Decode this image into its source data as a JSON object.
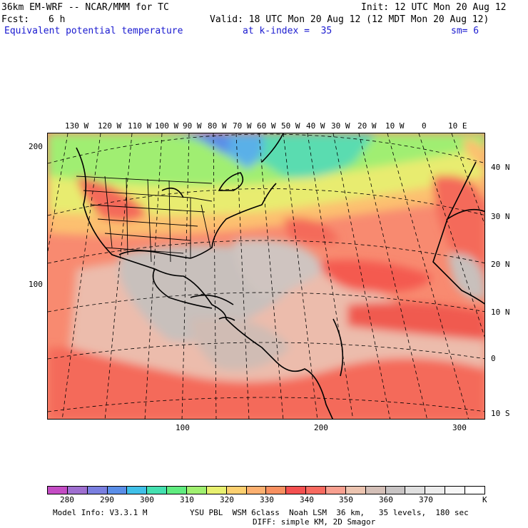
{
  "header": {
    "model_title": "36km EM-WRF -- NCAR/MMM for TC",
    "init": "Init: 12 UTC Mon 20 Aug 12",
    "fcst_label": "Fcst:",
    "fcst_value": "6 h",
    "valid": "Valid: 18 UTC Mon 20 Aug 12 (12 MDT Mon 20 Aug 12)",
    "field_name": "Equivalent potential temperature",
    "level": "at k-index =  35",
    "smoothing": "sm= 6"
  },
  "map": {
    "lon_labels": [
      "130 W",
      "120 W",
      "110 W",
      "100 W",
      "90 W",
      "80 W",
      "70 W",
      "60 W",
      "50 W",
      "40 W",
      "30 W",
      "20 W",
      "10 W",
      "0",
      "10 E"
    ],
    "lat_labels": [
      "40 N",
      "30 N",
      "20 N",
      "10 N",
      "0",
      "10 S"
    ],
    "y_grid_labels": [
      "200",
      "100"
    ],
    "x_grid_labels": [
      "100",
      "200",
      "300"
    ]
  },
  "colorbar": {
    "colors": [
      "#c44cc4",
      "#9f6fd0",
      "#7a7fe0",
      "#5a8ee8",
      "#40c0e8",
      "#44e0b0",
      "#60ec80",
      "#a0f070",
      "#e8f070",
      "#fcd070",
      "#fcb070",
      "#f89060",
      "#f45050",
      "#f86a60",
      "#f8a090",
      "#ecc4b0",
      "#d4c0b8",
      "#c8c4c4",
      "#e0e0e0",
      "#ececec",
      "#f6f6f6",
      "#ffffff"
    ],
    "tick_labels": [
      "280",
      "290",
      "300",
      "310",
      "320",
      "330",
      "340",
      "350",
      "360",
      "370"
    ],
    "unit": "K"
  },
  "footer": {
    "model_info": "Model Info: V3.3.1 M",
    "physics": "YSU PBL  WSM 6class  Noah LSM  36 km,   35 levels,  180 sec",
    "diffusion": "DIFF: simple KM, 2D Smagor"
  }
}
